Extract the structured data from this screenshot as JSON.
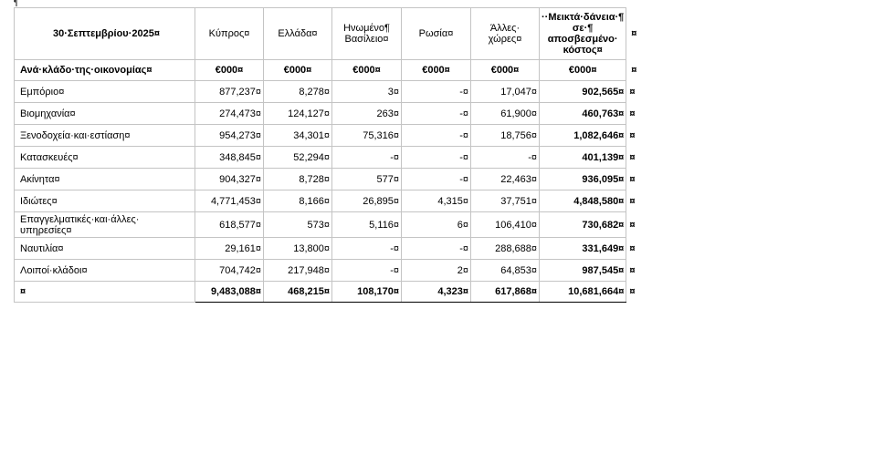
{
  "pilcrow": "¶",
  "table": {
    "header": [
      "30·Σεπτεμβρίου·2025¤",
      "Κύπρος¤",
      "Ελλάδα¤",
      "Ηνωμένο¶\nΒασίλειο¤",
      "Ρωσία¤",
      "Άλλες·\nχώρες¤",
      "··Μεικτά·δάνεια·¶\nσε·¶\nαποσβεσμένο·\nκόστος¤",
      "¤"
    ],
    "units": [
      "Ανά·κλάδο·της·οικονομίας¤",
      "€000¤",
      "€000¤",
      "€000¤",
      "€000¤",
      "€000¤",
      "€000¤",
      "¤"
    ],
    "rows": [
      [
        "Εμπόριο¤",
        "877,237¤",
        "8,278¤",
        "3¤",
        "-¤",
        "17,047¤",
        "902,565¤",
        "¤"
      ],
      [
        "Βιομηχανία¤",
        "274,473¤",
        "124,127¤",
        "263¤",
        "-¤",
        "61,900¤",
        "460,763¤",
        "¤"
      ],
      [
        "Ξενοδοχεία·και·εστίαση¤",
        "954,273¤",
        "34,301¤",
        "75,316¤",
        "-¤",
        "18,756¤",
        "1,082,646¤",
        "¤"
      ],
      [
        "Κατασκευές¤",
        "348,845¤",
        "52,294¤",
        "-¤",
        "-¤",
        "-¤",
        "401,139¤",
        "¤"
      ],
      [
        "Ακίνητα¤",
        "904,327¤",
        "8,728¤",
        "577¤",
        "-¤",
        "22,463¤",
        "936,095¤",
        "¤"
      ],
      [
        "Ιδιώτες¤",
        "4,771,453¤",
        "8,166¤",
        "26,895¤",
        "4,315¤",
        "37,751¤",
        "4,848,580¤",
        "¤"
      ],
      [
        "Επαγγελματικές·και·άλλες·\nυπηρεσίες¤",
        "618,577¤",
        "573¤",
        "5,116¤",
        "6¤",
        "106,410¤",
        "730,682¤",
        "¤"
      ],
      [
        "Ναυτιλία¤",
        "29,161¤",
        "13,800¤",
        "-¤",
        "-¤",
        "288,688¤",
        "331,649¤",
        "¤"
      ],
      [
        "Λοιποί·κλάδοι¤",
        "704,742¤",
        "217,948¤",
        "-¤",
        "2¤",
        "64,853¤",
        "987,545¤",
        "¤"
      ]
    ],
    "total": [
      "¤",
      "9,483,088¤",
      "468,215¤",
      "108,170¤",
      "4,323¤",
      "617,868¤",
      "10,681,664¤",
      "¤"
    ]
  }
}
